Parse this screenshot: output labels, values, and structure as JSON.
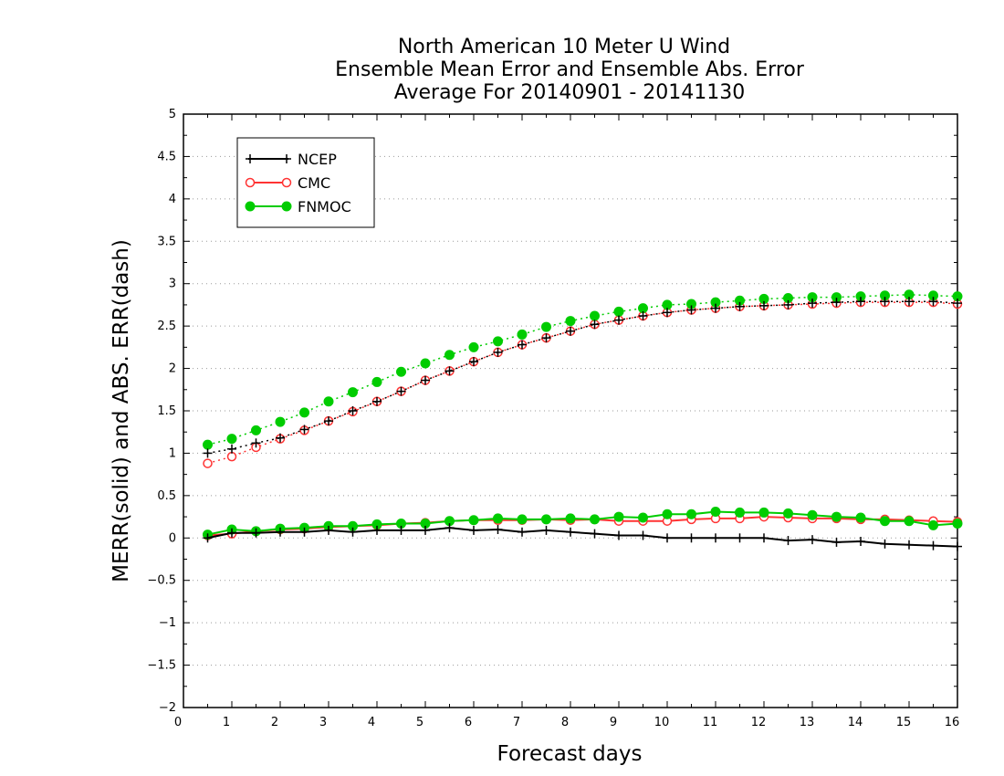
{
  "chart_data": {
    "type": "line",
    "title": [
      "North American 10 Meter U Wind",
      "Ensemble Mean Error and Ensemble Abs. Error",
      "Average For 20140901 - 20141130"
    ],
    "xlabel": "Forecast days",
    "ylabel": "MERR(solid) and ABS. ERR(dash)",
    "xlim": [
      0,
      16
    ],
    "ylim": [
      -2,
      5
    ],
    "xticks": [
      "0",
      "1",
      "2",
      "3",
      "4",
      "5",
      "6",
      "7",
      "8",
      "9",
      "10",
      "11",
      "12",
      "13",
      "14",
      "15",
      "16"
    ],
    "yticks": [
      "-2",
      "-1.5",
      "-1",
      "-0.5",
      "0",
      "0.5",
      "1",
      "1.5",
      "2",
      "2.5",
      "3",
      "3.5",
      "4",
      "4.5",
      "5"
    ],
    "grid": "horizontal dotted",
    "legend_position": "top-left",
    "x": [
      0.5,
      1,
      1.5,
      2,
      2.5,
      3,
      3.5,
      4,
      4.5,
      5,
      5.5,
      6,
      6.5,
      7,
      7.5,
      8,
      8.5,
      9,
      9.5,
      10,
      10.5,
      11,
      11.5,
      12,
      12.5,
      13,
      13.5,
      14,
      14.5,
      15,
      15.5,
      16
    ],
    "series": [
      {
        "name": "NCEP",
        "color": "#000000",
        "marker": "plus",
        "merr": [
          0.0,
          0.06,
          0.06,
          0.07,
          0.07,
          0.09,
          0.07,
          0.09,
          0.09,
          0.09,
          0.12,
          0.09,
          0.1,
          0.07,
          0.09,
          0.07,
          0.05,
          0.03,
          0.03,
          0.0,
          0.0,
          0.0,
          0.0,
          0.0,
          -0.03,
          -0.02,
          -0.05,
          -0.04,
          -0.07,
          -0.08,
          -0.09,
          -0.1
        ],
        "abs_err": [
          1.0,
          1.05,
          1.12,
          1.18,
          1.28,
          1.38,
          1.5,
          1.61,
          1.73,
          1.86,
          1.97,
          2.08,
          2.19,
          2.28,
          2.36,
          2.44,
          2.52,
          2.57,
          2.62,
          2.66,
          2.69,
          2.71,
          2.73,
          2.74,
          2.75,
          2.77,
          2.78,
          2.79,
          2.79,
          2.79,
          2.79,
          2.77
        ]
      },
      {
        "name": "CMC",
        "color": "#ff3333",
        "marker": "open-circle",
        "merr": [
          0.03,
          0.05,
          0.08,
          0.1,
          0.11,
          0.13,
          0.14,
          0.15,
          0.17,
          0.18,
          0.2,
          0.21,
          0.21,
          0.21,
          0.22,
          0.21,
          0.22,
          0.2,
          0.2,
          0.2,
          0.22,
          0.23,
          0.23,
          0.25,
          0.24,
          0.23,
          0.23,
          0.22,
          0.22,
          0.21,
          0.2,
          0.19
        ],
        "abs_err": [
          0.88,
          0.96,
          1.07,
          1.17,
          1.27,
          1.38,
          1.49,
          1.61,
          1.73,
          1.86,
          1.97,
          2.08,
          2.19,
          2.28,
          2.36,
          2.44,
          2.52,
          2.57,
          2.62,
          2.66,
          2.69,
          2.71,
          2.73,
          2.74,
          2.75,
          2.76,
          2.77,
          2.78,
          2.78,
          2.78,
          2.78,
          2.76
        ]
      },
      {
        "name": "FNMOC",
        "color": "#00cc00",
        "marker": "filled-circle",
        "merr": [
          0.04,
          0.1,
          0.08,
          0.11,
          0.12,
          0.14,
          0.14,
          0.16,
          0.17,
          0.17,
          0.2,
          0.21,
          0.23,
          0.22,
          0.22,
          0.23,
          0.22,
          0.25,
          0.24,
          0.28,
          0.28,
          0.31,
          0.3,
          0.3,
          0.29,
          0.27,
          0.25,
          0.24,
          0.2,
          0.2,
          0.15,
          0.17
        ],
        "abs_err": [
          1.1,
          1.17,
          1.27,
          1.37,
          1.48,
          1.61,
          1.72,
          1.84,
          1.96,
          2.06,
          2.16,
          2.25,
          2.32,
          2.4,
          2.49,
          2.56,
          2.62,
          2.67,
          2.71,
          2.75,
          2.76,
          2.78,
          2.8,
          2.82,
          2.83,
          2.84,
          2.84,
          2.85,
          2.86,
          2.87,
          2.86,
          2.85
        ]
      }
    ]
  }
}
